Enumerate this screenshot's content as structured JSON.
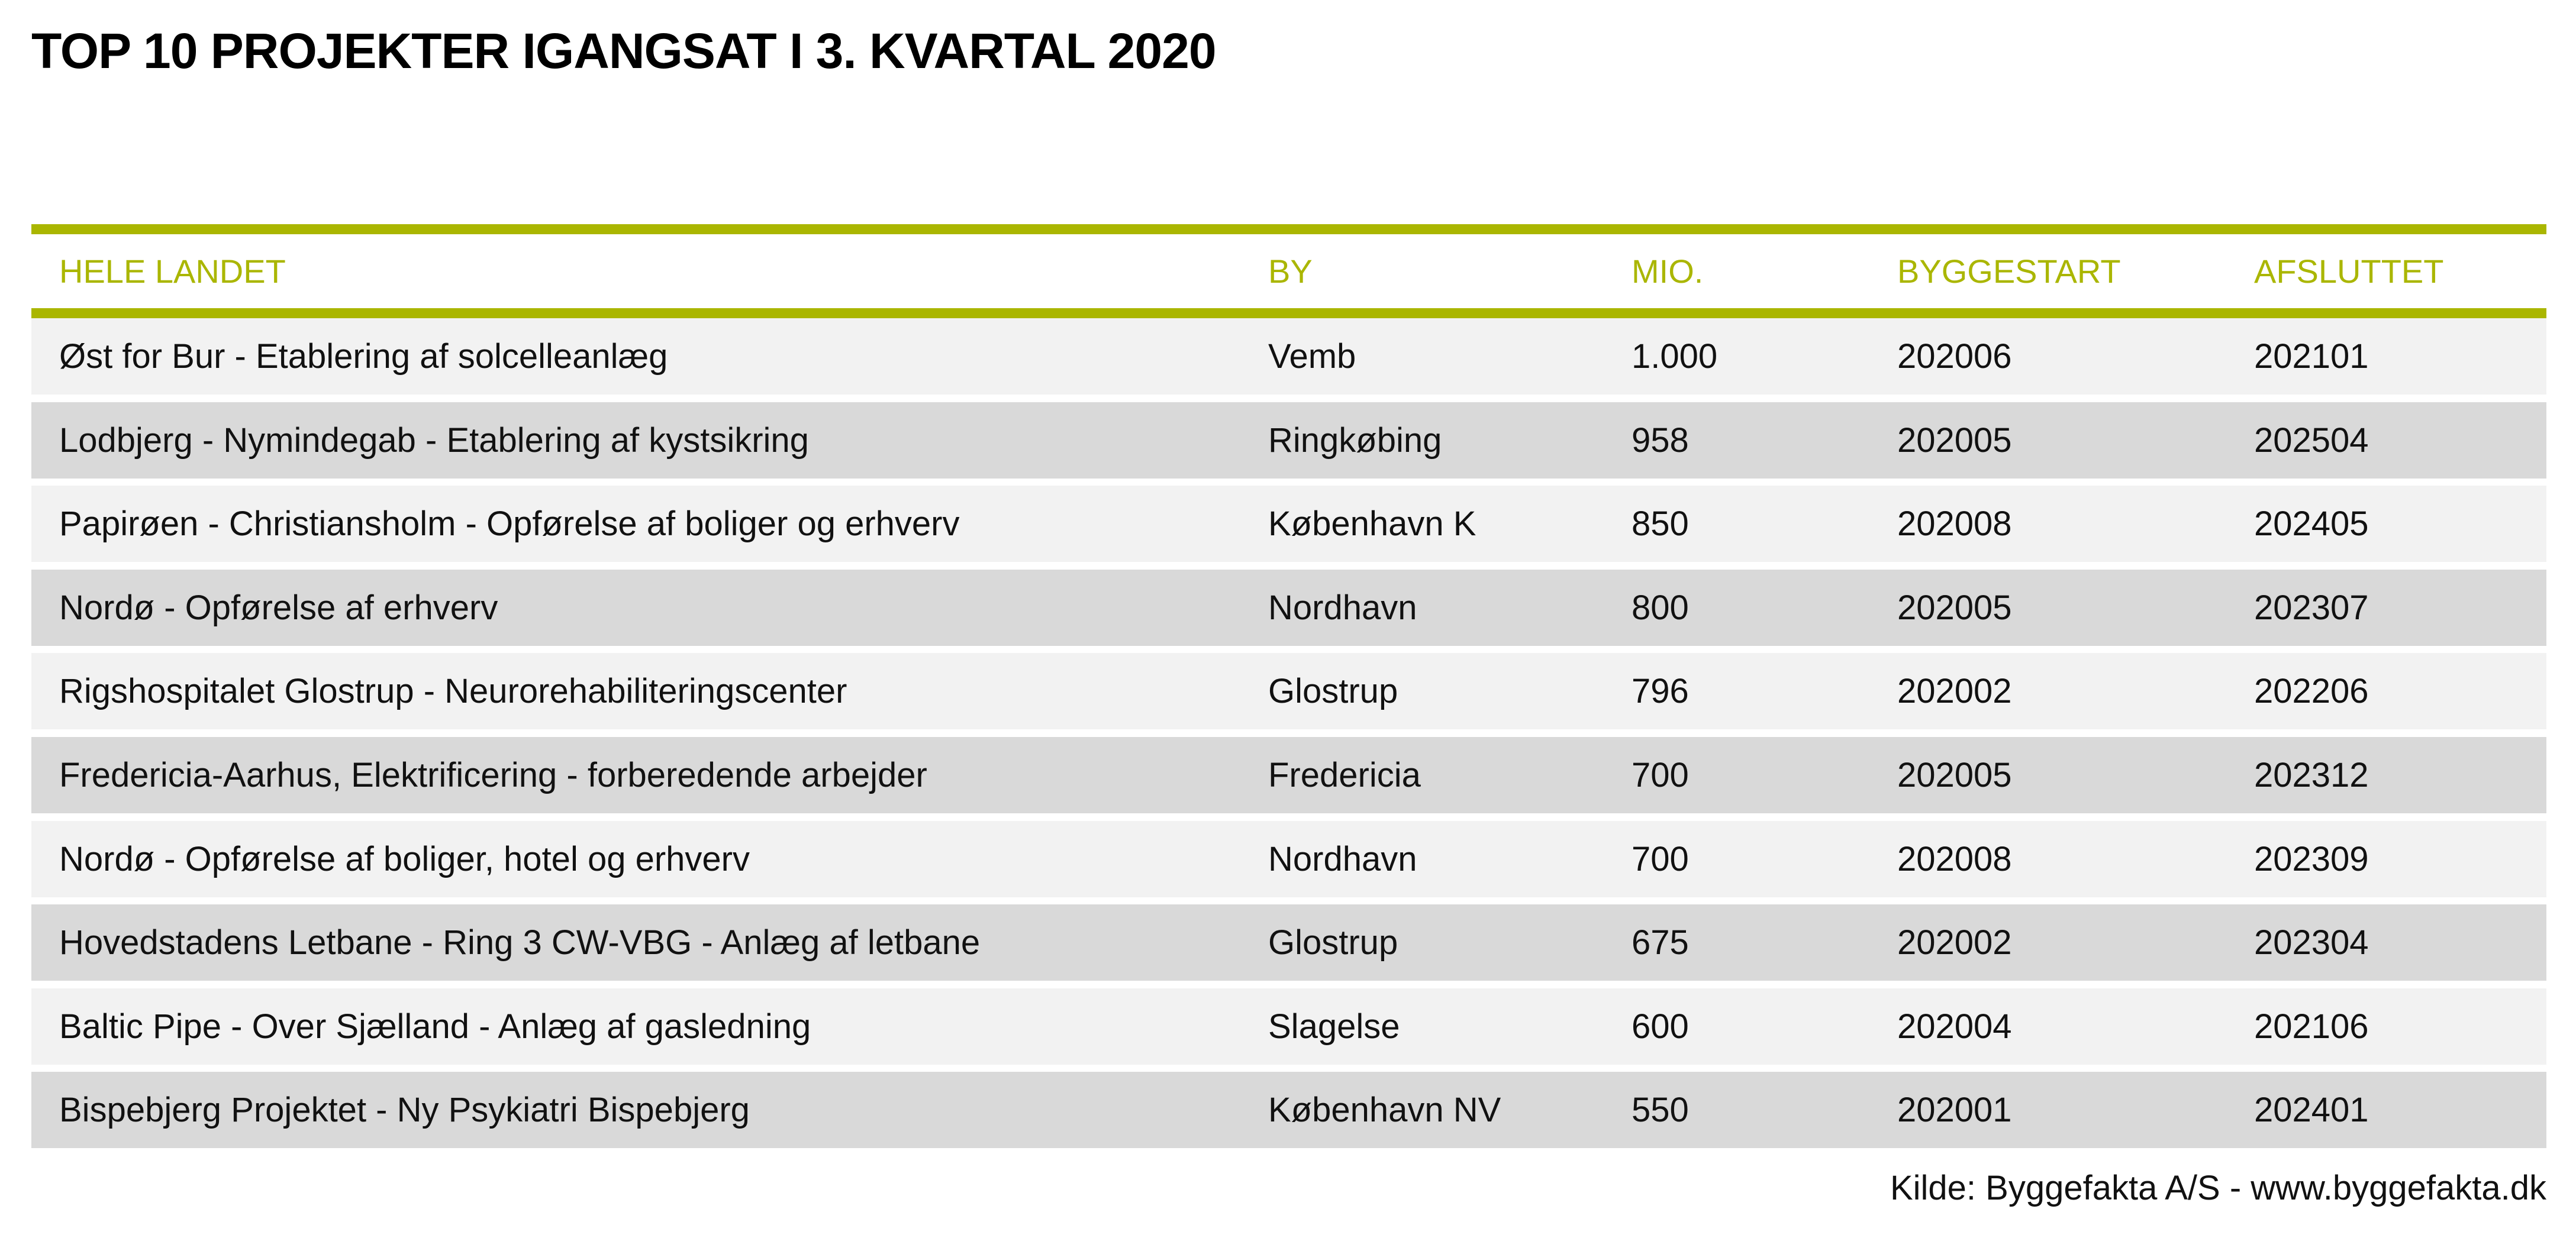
{
  "title": "TOP 10 PROJEKTER IGANGSAT I 3. KVARTAL 2020",
  "columns": [
    "HELE LANDET",
    "BY",
    "MIO.",
    "BYGGESTART",
    "AFSLUTTET"
  ],
  "rows": [
    [
      "Øst for Bur - Etablering af solcelleanlæg",
      "Vemb",
      "1.000",
      "202006",
      "202101"
    ],
    [
      "Lodbjerg - Nymindegab - Etablering af kystsikring",
      "Ringkøbing",
      "958",
      "202005",
      "202504"
    ],
    [
      "Papirøen - Christiansholm - Opførelse af boliger og erhverv",
      "København K",
      "850",
      "202008",
      "202405"
    ],
    [
      "Nordø - Opførelse af erhverv",
      "Nordhavn",
      "800",
      "202005",
      "202307"
    ],
    [
      "Rigshospitalet Glostrup - Neurorehabiliteringscenter",
      "Glostrup",
      "796",
      "202002",
      "202206"
    ],
    [
      "Fredericia-Aarhus, Elektrificering - forberedende arbejder",
      "Fredericia",
      "700",
      "202005",
      "202312"
    ],
    [
      "Nordø - Opførelse af boliger, hotel og erhverv",
      "Nordhavn",
      "700",
      "202008",
      "202309"
    ],
    [
      "Hovedstadens Letbane - Ring 3 CW-VBG - Anlæg af letbane",
      "Glostrup",
      "675",
      "202002",
      "202304"
    ],
    [
      "Baltic Pipe - Over Sjælland - Anlæg af gasledning",
      "Slagelse",
      "600",
      "202004",
      "202106"
    ],
    [
      "Bispebjerg Projektet - Ny Psykiatri Bispebjerg",
      "København NV",
      "550",
      "202001",
      "202401"
    ]
  ],
  "source": "Kilde: Byggefakta A/S - www.byggefakta.dk",
  "colors": {
    "accent": "#aab600",
    "row_light": "#f2f2f2",
    "row_dark": "#d9d9d9"
  }
}
